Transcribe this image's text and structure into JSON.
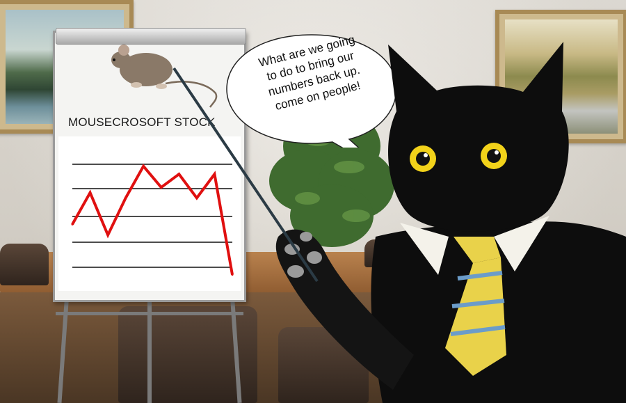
{
  "scene": {
    "description_free": true
  },
  "flipchart": {
    "heading": "MOUSECROSOFT STOCK",
    "image": "mouse"
  },
  "speech_bubble": {
    "lines": [
      "What are we going",
      "to do to bring our",
      "numbers back up.",
      "come on people!"
    ]
  },
  "colors": {
    "chart_line": "#e01010",
    "grid_line": "#111111",
    "cat": "#0d0d0d",
    "cat_eyes": "#f2d21a",
    "tie": "#e9d24a"
  },
  "chart_data": {
    "type": "line",
    "title": "MOUSECROSOFT STOCK",
    "xlabel": "",
    "ylabel": "",
    "x": [
      0,
      1,
      2,
      3,
      4,
      5,
      6,
      7,
      8,
      9
    ],
    "y": [
      2.2,
      3.4,
      1.8,
      3.2,
      4.4,
      3.6,
      4.1,
      3.2,
      4.1,
      0.3
    ],
    "ylim": [
      0,
      5
    ],
    "grid": true,
    "gridlines": 5
  }
}
